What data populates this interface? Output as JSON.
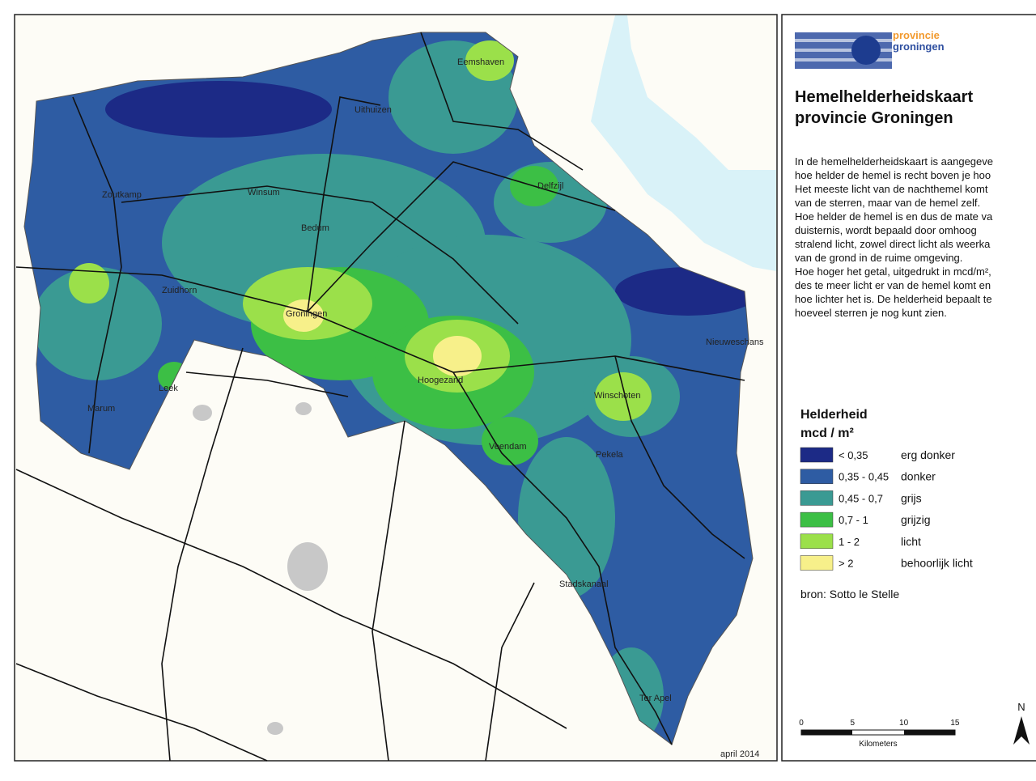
{
  "map": {
    "date": "april 2014",
    "cities": [
      "Eemshaven",
      "Uithuizen",
      "Delfzijl",
      "Zoutkamp",
      "Winsum",
      "Bedum",
      "Zuidhorn",
      "Groningen",
      "Nieuweschans",
      "Hoogezand",
      "Leek",
      "Marum",
      "Winschoten",
      "Veendam",
      "Pekela",
      "Stadskanaal",
      "Ter Apel"
    ]
  },
  "panel": {
    "logo": [
      "provincie",
      "groningen"
    ],
    "title": [
      "Hemelhelderheidskaart",
      "provincie Groningen"
    ],
    "text": [
      "In de hemelhelderheidskaart is aangegeve",
      "hoe helder de hemel is recht boven je hoo",
      "Het meeste licht van de nachthemel komt",
      "van de sterren, maar van de hemel zelf.",
      "Hoe helder de hemel is en dus de mate va",
      "duisternis, wordt bepaald door omhoog",
      "stralend licht, zowel direct licht als weerka",
      "van de grond in de ruime omgeving.",
      "Hoe hoger het getal, uitgedrukt in mcd/m²,",
      "des te meer licht er van de hemel komt en",
      "hoe lichter het is. De helderheid bepaalt te",
      "hoeveel sterren je nog kunt zien."
    ],
    "legend": {
      "title": [
        "Helderheid",
        "mcd / m²"
      ],
      "items": [
        {
          "range": "< 0,35",
          "label": "erg donker",
          "color": "#1c2a86"
        },
        {
          "range": "0,35 - 0,45",
          "label": "donker",
          "color": "#2e5ca3"
        },
        {
          "range": "0,45 - 0,7",
          "label": "grijs",
          "color": "#3a9a93"
        },
        {
          "range": "0,7 - 1",
          "label": "grijzig",
          "color": "#3cbf45"
        },
        {
          "range": "1 - 2",
          "label": "licht",
          "color": "#9be04a"
        },
        {
          "range": "> 2",
          "label": "behoorlijk licht",
          "color": "#f7f08a"
        }
      ]
    },
    "source": "bron: Sotto le Stelle",
    "scale": {
      "ticks": [
        "0",
        "5",
        "10",
        "15"
      ],
      "unit": "Kilometers"
    },
    "north": "N"
  }
}
